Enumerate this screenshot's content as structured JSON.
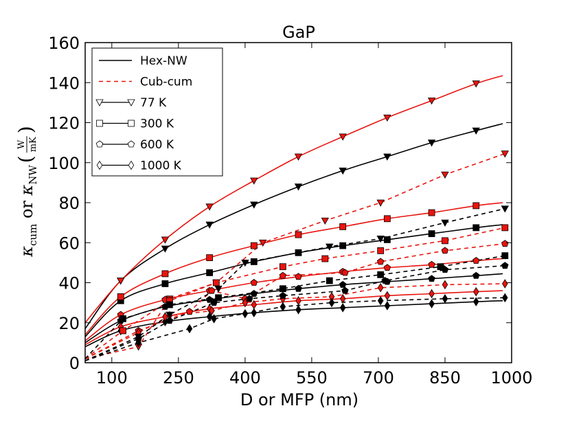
{
  "chart_data": {
    "type": "line",
    "title": "GaP",
    "xlabel": "D or MFP (nm)",
    "ylabel": {
      "kappa": "κ",
      "sub_cum": "cum",
      "or_text": " or ",
      "sub_nw": "NW",
      "frac_num": "W",
      "frac_den": "mK",
      "paren_open": "(",
      "paren_close": ")"
    },
    "xlim": [
      40,
      1000
    ],
    "ylim": [
      0,
      160
    ],
    "xticks": [
      100,
      250,
      400,
      550,
      700,
      850,
      1000
    ],
    "yticks": [
      0,
      20,
      40,
      60,
      80,
      100,
      120,
      140,
      160
    ],
    "colors": {
      "hex": "#000000",
      "cub": "#e8140e"
    },
    "legend": {
      "location": "top-left",
      "entries": [
        {
          "label": "Hex-NW",
          "style": "solid"
        },
        {
          "label": "Cub-cum",
          "style": "dashed"
        },
        {
          "label": "77 K",
          "marker": "triangle-down"
        },
        {
          "label": "300 K",
          "marker": "square"
        },
        {
          "label": "600 K",
          "marker": "pentagon"
        },
        {
          "label": "1000 K",
          "marker": "diamond"
        }
      ]
    },
    "series": [
      {
        "name": "Hex-NW 77 K",
        "kind": "hex",
        "temp": "77 K",
        "marker": "triangle-down",
        "x": [
          40,
          120,
          220,
          320,
          420,
          520,
          620,
          720,
          820,
          920,
          980
        ],
        "y": [
          17,
          41,
          57,
          69,
          79,
          88,
          96,
          103,
          110,
          116,
          119.5
        ]
      },
      {
        "name": "Hex-NW 300 K",
        "kind": "hex",
        "temp": "300 K",
        "marker": "square",
        "x": [
          40,
          120,
          220,
          320,
          420,
          520,
          620,
          720,
          820,
          920,
          980
        ],
        "y": [
          13,
          31,
          39.5,
          45,
          50.5,
          55,
          58.5,
          61.5,
          64.5,
          67.5,
          69
        ]
      },
      {
        "name": "Hex-NW 600 K",
        "kind": "hex",
        "temp": "600 K",
        "marker": "pentagon",
        "x": [
          40,
          120,
          220,
          320,
          420,
          520,
          620,
          720,
          820,
          920,
          980
        ],
        "y": [
          10,
          21,
          28,
          31.5,
          34.5,
          37,
          39,
          40.5,
          42,
          43.5,
          44.5
        ]
      },
      {
        "name": "Hex-NW 1000 K",
        "kind": "hex",
        "temp": "1000 K",
        "marker": "diamond",
        "x": [
          40,
          120,
          220,
          320,
          420,
          520,
          620,
          720,
          820,
          920,
          980
        ],
        "y": [
          8,
          16,
          20.5,
          23,
          25,
          26.5,
          27.5,
          28.5,
          29.5,
          30.5,
          31
        ]
      },
      {
        "name": "Cub-NW 77 K",
        "kind": "cubnw",
        "temp": "77 K",
        "marker": "triangle-down",
        "x": [
          40,
          120,
          220,
          320,
          420,
          520,
          620,
          720,
          820,
          920,
          980
        ],
        "y": [
          20,
          41,
          61.5,
          78,
          91,
          103,
          113,
          122.5,
          131,
          139.5,
          143.5
        ]
      },
      {
        "name": "Cub-NW 300 K",
        "kind": "cubnw",
        "temp": "300 K",
        "marker": "square",
        "x": [
          40,
          120,
          220,
          320,
          420,
          520,
          620,
          720,
          820,
          920,
          980
        ],
        "y": [
          14,
          33,
          44.5,
          52.5,
          58.5,
          64,
          68,
          72,
          75,
          78.5,
          80
        ]
      },
      {
        "name": "Cub-NW 600 K",
        "kind": "cubnw",
        "temp": "600 K",
        "marker": "pentagon",
        "x": [
          40,
          120,
          220,
          320,
          420,
          520,
          620,
          720,
          820,
          920,
          980
        ],
        "y": [
          11,
          24,
          31.5,
          36,
          40,
          43,
          45.5,
          47.5,
          49,
          51,
          52
        ]
      },
      {
        "name": "Cub-NW 1000 K",
        "kind": "cubnw",
        "temp": "1000 K",
        "marker": "diamond",
        "x": [
          40,
          120,
          220,
          320,
          420,
          520,
          620,
          720,
          820,
          920,
          980
        ],
        "y": [
          9,
          18,
          23,
          27,
          29,
          31,
          32,
          33.5,
          34.5,
          35.5,
          36
        ]
      },
      {
        "name": "Cub-cum 77 K",
        "kind": "cubcum",
        "temp": "77 K",
        "marker": "triangle-down",
        "x": [
          40,
          160,
          230,
          335,
          440,
          580,
          705,
          850,
          985
        ],
        "y": [
          2,
          8,
          32,
          40,
          60,
          71,
          80,
          94,
          104.5
        ]
      },
      {
        "name": "Cub-cum 300 K",
        "kind": "cubcum",
        "temp": "300 K",
        "marker": "square",
        "x": [
          40,
          125,
          230,
          335,
          485,
          580,
          705,
          850,
          985
        ],
        "y": [
          2,
          16,
          31,
          40,
          48,
          52,
          56,
          61,
          67.5
        ]
      },
      {
        "name": "Cub-cum 600 K",
        "kind": "cubcum",
        "temp": "600 K",
        "marker": "pentagon",
        "x": [
          40,
          160,
          275,
          325,
          400,
          485,
          625,
          705,
          850,
          985
        ],
        "y": [
          2,
          16,
          25.5,
          36,
          32,
          43.5,
          45,
          50.5,
          56,
          59.5
        ]
      },
      {
        "name": "Cub-cum 1000 K",
        "kind": "cubcum",
        "temp": "1000 K",
        "marker": "diamond",
        "x": [
          40,
          160,
          230,
          325,
          400,
          485,
          595,
          705,
          850,
          985
        ],
        "y": [
          2,
          15,
          23.5,
          26,
          30,
          32,
          33,
          37.5,
          39,
          39.5
        ]
      },
      {
        "name": "Hex-cum 77 K",
        "kind": "hexcum",
        "temp": "77 K",
        "marker": "triangle-down",
        "x": [
          40,
          160,
          230,
          340,
          400,
          590,
          705,
          850,
          985
        ],
        "y": [
          1,
          13,
          24,
          37,
          50,
          58,
          62,
          70,
          77
        ]
      },
      {
        "name": "Hex-cum 300 K",
        "kind": "hexcum",
        "temp": "300 K",
        "marker": "square",
        "x": [
          40,
          125,
          230,
          340,
          485,
          590,
          705,
          840,
          985
        ],
        "y": [
          2,
          22,
          29,
          32.5,
          37,
          41,
          44,
          48,
          53.5
        ]
      },
      {
        "name": "Hex-cum 600 K",
        "kind": "hexcum",
        "temp": "600 K",
        "marker": "pentagon",
        "x": [
          40,
          160,
          230,
          330,
          410,
          485,
          625,
          715,
          850,
          985
        ],
        "y": [
          1,
          12,
          21,
          30,
          32,
          33.5,
          36,
          41,
          46.5,
          48.5
        ]
      },
      {
        "name": "Hex-cum 1000 K",
        "kind": "hexcum",
        "temp": "1000 K",
        "marker": "diamond",
        "x": [
          40,
          160,
          275,
          330,
          400,
          485,
          595,
          705,
          850,
          985
        ],
        "y": [
          1,
          10,
          17,
          22,
          24.5,
          28,
          30,
          31,
          32,
          32.5
        ]
      }
    ]
  }
}
